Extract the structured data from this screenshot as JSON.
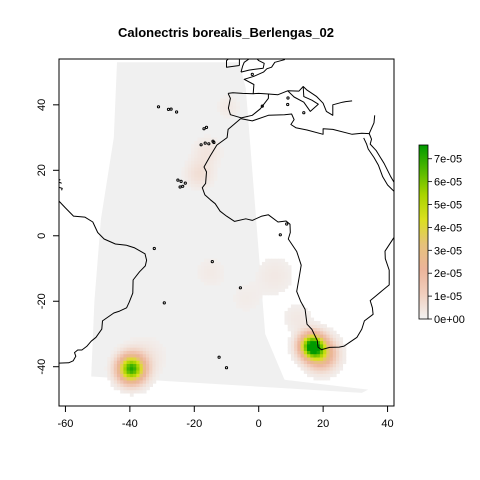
{
  "chart_data": {
    "type": "heatmap",
    "title": "Calonectris borealis_Berlengas_02",
    "xlabel": "",
    "ylabel": "",
    "xlim": [
      -62,
      42
    ],
    "ylim": [
      -52,
      54
    ],
    "x_ticks": [
      -60,
      -40,
      -20,
      0,
      20,
      40
    ],
    "x_tick_labels": [
      "-60",
      "-40",
      "-20",
      "0",
      "20",
      "40"
    ],
    "y_ticks": [
      -40,
      -20,
      0,
      20,
      40
    ],
    "y_tick_labels": [
      "-40",
      "-20",
      "0",
      "20",
      "40"
    ],
    "background_density": 0,
    "density_hotspots": [
      {
        "lon": -39.5,
        "lat": -40.5,
        "density": 7e-05,
        "spread_deg": 2.8
      },
      {
        "lon": 16.5,
        "lat": -33.5,
        "density": 7.5e-05,
        "spread_deg": 2.5
      },
      {
        "lon": 19.5,
        "lat": -36.0,
        "density": 3.5e-05,
        "spread_deg": 3.0
      },
      {
        "lon": -18.5,
        "lat": 19.0,
        "density": 6e-06,
        "spread_deg": 3.0
      },
      {
        "lon": -16.0,
        "lat": 26.0,
        "density": 4e-06,
        "spread_deg": 3.0
      },
      {
        "lon": -9.5,
        "lat": 39.5,
        "density": 3e-06,
        "spread_deg": 2.5
      },
      {
        "lon": 5.0,
        "lat": -12.0,
        "density": 3e-06,
        "spread_deg": 4.0
      },
      {
        "lon": -15.0,
        "lat": -11.0,
        "density": 2.5e-06,
        "spread_deg": 3.5
      },
      {
        "lon": 12.0,
        "lat": -25.0,
        "density": 3e-06,
        "spread_deg": 3.0
      },
      {
        "lon": -4.0,
        "lat": -19.0,
        "density": 2e-06,
        "spread_deg": 3.5
      },
      {
        "lon": -35.0,
        "lat": -37.0,
        "density": 4e-06,
        "spread_deg": 4.0
      }
    ],
    "colorbar": {
      "min": 0,
      "max": 7.6e-05,
      "ticks": [
        0,
        1e-05,
        2e-05,
        3e-05,
        4e-05,
        5e-05,
        6e-05,
        7e-05
      ],
      "tick_labels": [
        "0e+00",
        "1e-05",
        "2e-05",
        "3e-05",
        "4e-05",
        "5e-05",
        "6e-05",
        "7e-05"
      ],
      "colors": [
        "#f2f2f2",
        "#f1cfbe",
        "#ecb49a",
        "#e6c27a",
        "#dbe01f",
        "#a8d400",
        "#52b800",
        "#009a00"
      ]
    },
    "basemap": "world coastlines (black outlines)",
    "grid": false,
    "legend_position": "right"
  }
}
